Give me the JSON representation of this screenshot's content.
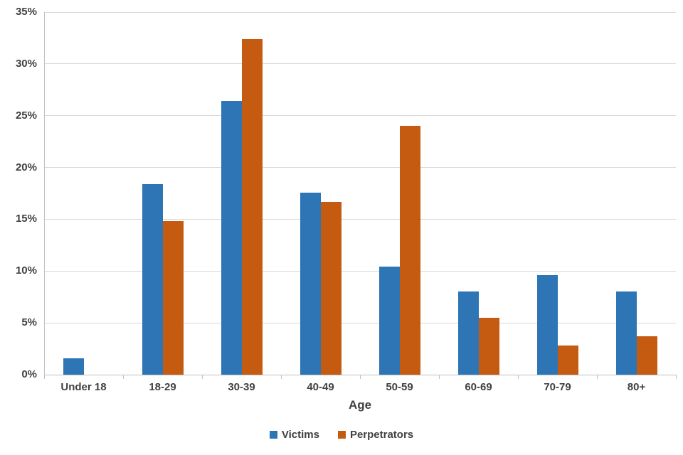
{
  "chart_data": {
    "type": "bar",
    "title": "",
    "categories": [
      "Under 18",
      "18-29",
      "30-39",
      "40-49",
      "50-59",
      "60-69",
      "70-79",
      "80+"
    ],
    "series": [
      {
        "name": "Victims",
        "color": "#2E75B6",
        "values": [
          1.6,
          18.4,
          26.4,
          17.6,
          10.4,
          8.0,
          9.6,
          8.0
        ]
      },
      {
        "name": "Perpetrators",
        "color": "#C55A11",
        "values": [
          0,
          14.8,
          32.4,
          16.7,
          24.0,
          5.5,
          2.8,
          3.7
        ]
      }
    ],
    "xlabel": "Age",
    "ylabel": "",
    "ylim": [
      0,
      35
    ],
    "ytick_step": 5,
    "ytick_labels": [
      "0%",
      "5%",
      "10%",
      "15%",
      "20%",
      "25%",
      "30%",
      "35%"
    ],
    "grid": true,
    "legend_position": "bottom"
  }
}
